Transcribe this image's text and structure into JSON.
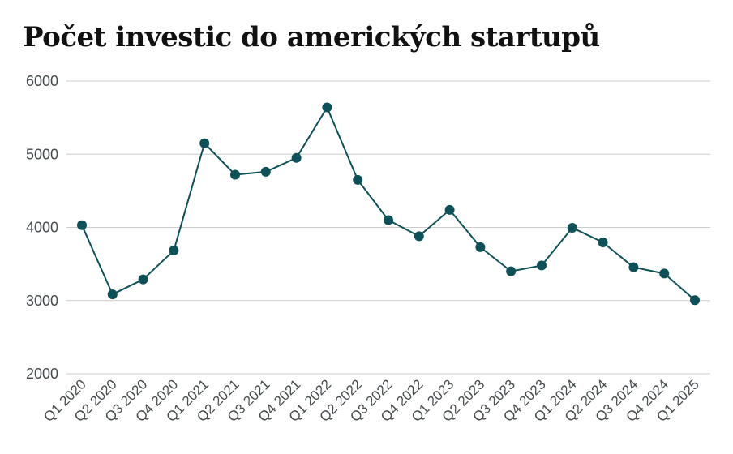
{
  "chart_data": {
    "type": "line",
    "title": "Počet investic do amerických startupů",
    "xlabel": "",
    "ylabel": "",
    "ylim": [
      2000,
      6000
    ],
    "yticks": [
      2000,
      3000,
      4000,
      5000,
      6000
    ],
    "grid": true,
    "categories": [
      "Q1 2020",
      "Q2 2020",
      "Q3 2020",
      "Q4 2020",
      "Q1 2021",
      "Q2 2021",
      "Q3 2021",
      "Q4 2021",
      "Q1 2022",
      "Q2 2022",
      "Q3 2022",
      "Q4 2022",
      "Q1 2023",
      "Q2 2023",
      "Q3 2023",
      "Q4 2023",
      "Q1 2024",
      "Q2 2024",
      "Q3 2024",
      "Q4 2024",
      "Q1 2025"
    ],
    "series": [
      {
        "values": [
          4030,
          3085,
          3290,
          3685,
          5150,
          4720,
          4760,
          4950,
          5640,
          4650,
          4100,
          3880,
          4240,
          3730,
          3400,
          3480,
          3995,
          3795,
          3455,
          3370,
          3005
        ],
        "color": "#0d5057"
      }
    ],
    "gridline_color": "#cccccc"
  }
}
